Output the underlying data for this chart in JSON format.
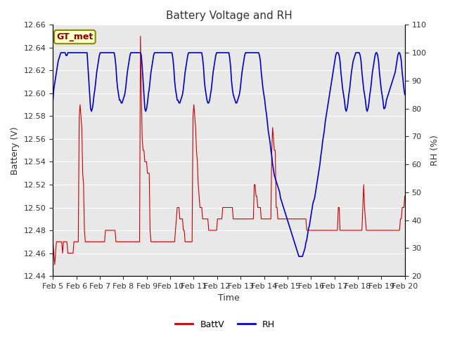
{
  "title": "Battery Voltage and RH",
  "ylabel_left": "Battery (V)",
  "ylabel_right": "RH (%)",
  "xlabel": "Time",
  "ylim_left": [
    12.44,
    12.66
  ],
  "ylim_right": [
    20,
    110
  ],
  "yticks_left": [
    12.44,
    12.46,
    12.48,
    12.5,
    12.52,
    12.54,
    12.56,
    12.58,
    12.6,
    12.62,
    12.64,
    12.66
  ],
  "yticks_right": [
    20,
    30,
    40,
    50,
    60,
    70,
    80,
    90,
    100,
    110
  ],
  "xtick_labels": [
    "Feb 5",
    "Feb 6",
    "Feb 7",
    "Feb 8",
    "Feb 9",
    "Feb 10",
    "Feb 11",
    "Feb 12",
    "Feb 13",
    "Feb 14",
    "Feb 15",
    "Feb 16",
    "Feb 17",
    "Feb 18",
    "Feb 19",
    "Feb 20"
  ],
  "station_label": "GT_met",
  "legend_labels": [
    "BattV",
    "RH"
  ],
  "line_colors": [
    "#cc0000",
    "#0000cc"
  ],
  "background_color": "#e8e8e8",
  "title_fontsize": 11,
  "label_fontsize": 9,
  "tick_fontsize": 8,
  "battv_data": [
    12.47,
    12.46,
    12.45,
    12.46,
    12.47,
    12.47,
    12.47,
    12.47,
    12.47,
    12.47,
    12.47,
    12.46,
    12.47,
    12.47,
    12.47,
    12.47,
    12.47,
    12.46,
    12.46,
    12.46,
    12.46,
    12.46,
    12.46,
    12.46,
    12.47,
    12.47,
    12.47,
    12.47,
    12.47,
    12.47,
    12.58,
    12.59,
    12.58,
    12.57,
    12.53,
    12.52,
    12.48,
    12.47,
    12.47,
    12.47,
    12.47,
    12.47,
    12.47,
    12.47,
    12.47,
    12.47,
    12.47,
    12.47,
    12.47,
    12.47,
    12.47,
    12.47,
    12.47,
    12.47,
    12.47,
    12.47,
    12.47,
    12.47,
    12.47,
    12.47,
    12.48,
    12.48,
    12.48,
    12.48,
    12.48,
    12.48,
    12.48,
    12.48,
    12.48,
    12.48,
    12.48,
    12.48,
    12.47,
    12.47,
    12.47,
    12.47,
    12.47,
    12.47,
    12.47,
    12.47,
    12.47,
    12.47,
    12.47,
    12.47,
    12.47,
    12.47,
    12.47,
    12.47,
    12.47,
    12.47,
    12.47,
    12.47,
    12.47,
    12.47,
    12.47,
    12.47,
    12.47,
    12.47,
    12.47,
    12.47,
    12.65,
    12.6,
    12.56,
    12.55,
    12.55,
    12.54,
    12.54,
    12.54,
    12.53,
    12.53,
    12.53,
    12.48,
    12.47,
    12.47,
    12.47,
    12.47,
    12.47,
    12.47,
    12.47,
    12.47,
    12.47,
    12.47,
    12.47,
    12.47,
    12.47,
    12.47,
    12.47,
    12.47,
    12.47,
    12.47,
    12.47,
    12.47,
    12.47,
    12.47,
    12.47,
    12.47,
    12.47,
    12.47,
    12.47,
    12.47,
    12.48,
    12.49,
    12.5,
    12.5,
    12.5,
    12.49,
    12.49,
    12.49,
    12.49,
    12.48,
    12.48,
    12.47,
    12.47,
    12.47,
    12.47,
    12.47,
    12.47,
    12.47,
    12.47,
    12.47,
    12.58,
    12.59,
    12.58,
    12.57,
    12.55,
    12.54,
    12.52,
    12.51,
    12.5,
    12.5,
    12.5,
    12.49,
    12.49,
    12.49,
    12.49,
    12.49,
    12.49,
    12.49,
    12.48,
    12.48,
    12.48,
    12.48,
    12.48,
    12.48,
    12.48,
    12.48,
    12.48,
    12.48,
    12.49,
    12.49,
    12.49,
    12.49,
    12.49,
    12.49,
    12.5,
    12.5,
    12.5,
    12.5,
    12.5,
    12.5,
    12.5,
    12.5,
    12.5,
    12.5,
    12.5,
    12.5,
    12.49,
    12.49,
    12.49,
    12.49,
    12.49,
    12.49,
    12.49,
    12.49,
    12.49,
    12.49,
    12.49,
    12.49,
    12.49,
    12.49,
    12.49,
    12.49,
    12.49,
    12.49,
    12.49,
    12.49,
    12.49,
    12.49,
    12.49,
    12.49,
    12.52,
    12.52,
    12.51,
    12.51,
    12.5,
    12.5,
    12.5,
    12.5,
    12.49,
    12.49,
    12.49,
    12.49,
    12.49,
    12.49,
    12.49,
    12.49,
    12.49,
    12.49,
    12.49,
    12.49,
    12.55,
    12.57,
    12.56,
    12.55,
    12.55,
    12.5,
    12.5,
    12.49,
    12.49,
    12.49,
    12.49,
    12.49,
    12.49,
    12.49,
    12.49,
    12.49,
    12.49,
    12.49,
    12.49,
    12.49,
    12.49,
    12.49,
    12.49,
    12.49,
    12.49,
    12.49,
    12.49,
    12.49,
    12.49,
    12.49,
    12.49,
    12.49,
    12.49,
    12.49,
    12.49,
    12.49,
    12.49,
    12.49,
    12.49,
    12.49,
    12.48,
    12.48,
    12.48,
    12.48,
    12.48,
    12.48,
    12.48,
    12.48,
    12.48,
    12.48,
    12.48,
    12.48,
    12.48,
    12.48,
    12.48,
    12.48,
    12.48,
    12.48,
    12.48,
    12.48,
    12.48,
    12.48,
    12.48,
    12.48,
    12.48,
    12.48,
    12.48,
    12.48,
    12.48,
    12.48,
    12.48,
    12.48,
    12.48,
    12.48,
    12.48,
    12.48,
    12.5,
    12.5,
    12.48,
    12.48,
    12.48,
    12.48,
    12.48,
    12.48,
    12.48,
    12.48,
    12.48,
    12.48,
    12.48,
    12.48,
    12.48,
    12.48,
    12.48,
    12.48,
    12.48,
    12.48,
    12.48,
    12.48,
    12.48,
    12.48,
    12.48,
    12.48,
    12.48,
    12.48,
    12.5,
    12.52,
    12.5,
    12.49,
    12.48,
    12.48,
    12.48,
    12.48,
    12.48,
    12.48,
    12.48,
    12.48,
    12.48,
    12.48,
    12.48,
    12.48,
    12.48,
    12.48,
    12.48,
    12.48,
    12.48,
    12.48,
    12.48,
    12.48,
    12.48,
    12.48,
    12.48,
    12.48,
    12.48,
    12.48,
    12.48,
    12.48,
    12.48,
    12.48,
    12.48,
    12.48,
    12.48,
    12.48,
    12.48,
    12.48,
    12.48,
    12.48,
    12.48,
    12.49,
    12.49,
    12.5,
    12.5,
    12.5,
    12.51
  ],
  "rh_data": [
    83,
    87,
    89,
    91,
    93,
    95,
    97,
    98,
    99,
    100,
    100,
    100,
    100,
    100,
    100,
    99,
    99,
    100,
    100,
    100,
    100,
    100,
    100,
    100,
    100,
    100,
    100,
    100,
    100,
    100,
    100,
    100,
    100,
    100,
    100,
    100,
    100,
    100,
    100,
    100,
    95,
    90,
    85,
    80,
    79,
    80,
    82,
    85,
    87,
    90,
    93,
    95,
    97,
    99,
    100,
    100,
    100,
    100,
    100,
    100,
    100,
    100,
    100,
    100,
    100,
    100,
    100,
    100,
    100,
    100,
    100,
    98,
    95,
    90,
    87,
    85,
    83,
    83,
    82,
    82,
    83,
    84,
    85,
    87,
    90,
    93,
    95,
    97,
    99,
    100,
    100,
    100,
    100,
    100,
    100,
    100,
    100,
    100,
    100,
    100,
    100,
    99,
    95,
    90,
    85,
    80,
    79,
    80,
    82,
    85,
    87,
    90,
    93,
    95,
    97,
    99,
    100,
    100,
    100,
    100,
    100,
    100,
    100,
    100,
    100,
    100,
    100,
    100,
    100,
    100,
    100,
    100,
    100,
    100,
    100,
    100,
    100,
    98,
    95,
    90,
    87,
    85,
    83,
    83,
    82,
    82,
    83,
    84,
    85,
    87,
    90,
    93,
    95,
    97,
    99,
    100,
    100,
    100,
    100,
    100,
    100,
    100,
    100,
    100,
    100,
    100,
    100,
    100,
    100,
    100,
    100,
    98,
    95,
    90,
    87,
    85,
    83,
    82,
    82,
    83,
    85,
    87,
    90,
    93,
    95,
    97,
    99,
    100,
    100,
    100,
    100,
    100,
    100,
    100,
    100,
    100,
    100,
    100,
    100,
    100,
    100,
    100,
    98,
    95,
    90,
    87,
    85,
    84,
    83,
    82,
    82,
    83,
    84,
    85,
    87,
    90,
    93,
    95,
    97,
    99,
    100,
    100,
    100,
    100,
    100,
    100,
    100,
    100,
    100,
    100,
    100,
    100,
    100,
    100,
    100,
    100,
    99,
    97,
    93,
    90,
    87,
    85,
    83,
    80,
    78,
    75,
    72,
    70,
    68,
    65,
    63,
    60,
    58,
    56,
    55,
    54,
    53,
    52,
    51,
    50,
    48,
    47,
    46,
    45,
    44,
    43,
    42,
    41,
    40,
    39,
    38,
    37,
    36,
    35,
    34,
    33,
    32,
    31,
    30,
    29,
    28,
    27,
    27,
    27,
    27,
    27,
    28,
    29,
    30,
    32,
    33,
    35,
    37,
    38,
    40,
    42,
    44,
    46,
    47,
    48,
    50,
    52,
    54,
    56,
    58,
    60,
    63,
    65,
    68,
    70,
    72,
    75,
    77,
    79,
    81,
    83,
    85,
    87,
    89,
    91,
    93,
    95,
    97,
    99,
    100,
    100,
    100,
    99,
    97,
    93,
    90,
    87,
    85,
    83,
    80,
    79,
    80,
    82,
    85,
    87,
    90,
    93,
    95,
    97,
    98,
    99,
    100,
    100,
    100,
    100,
    100,
    99,
    97,
    93,
    90,
    87,
    85,
    83,
    80,
    79,
    80,
    82,
    85,
    87,
    90,
    93,
    95,
    97,
    99,
    100,
    100,
    99,
    97,
    93,
    90,
    87,
    85,
    83,
    80,
    80,
    81,
    83,
    84,
    85,
    86,
    87,
    88,
    89,
    90,
    91,
    92,
    93,
    95,
    97,
    99,
    100,
    100,
    99,
    97,
    93,
    90,
    87,
    85
  ]
}
